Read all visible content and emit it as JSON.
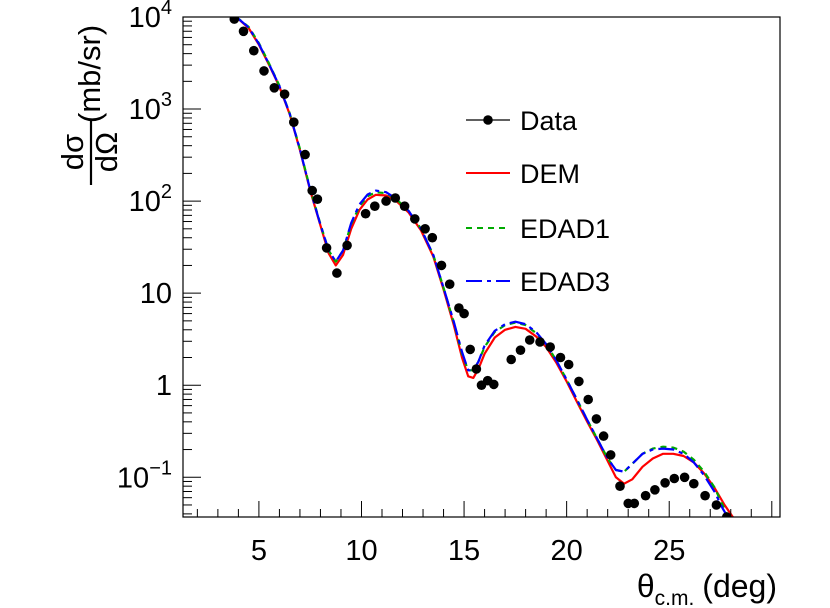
{
  "chart_data": {
    "type": "scatter",
    "title": "",
    "xlabel": {
      "main": "θ",
      "sub": "c.m.",
      "unit": "(deg)"
    },
    "ylabel": {
      "frac_num": "dσ",
      "frac_den": "dΩ",
      "unit": "(mb/sr)"
    },
    "xlim": [
      1.3,
      30.4
    ],
    "ylim": [
      0.037,
      10000
    ],
    "yscale": "log",
    "grid": false,
    "legend_position": "upper-right",
    "x_ticks": [
      {
        "value": 5,
        "label": "5"
      },
      {
        "value": 10,
        "label": "10"
      },
      {
        "value": 15,
        "label": "15"
      },
      {
        "value": 20,
        "label": "20"
      },
      {
        "value": 25,
        "label": "25"
      }
    ],
    "y_ticks": [
      {
        "value": 10000,
        "base": "10",
        "exp": "4",
        "label": ""
      },
      {
        "value": 1000,
        "base": "10",
        "exp": "3",
        "label": ""
      },
      {
        "value": 100,
        "base": "10",
        "exp": "2",
        "label": ""
      },
      {
        "value": 10,
        "base": "",
        "exp": "",
        "label": "10"
      },
      {
        "value": 1,
        "base": "",
        "exp": "",
        "label": "1"
      },
      {
        "value": 0.1,
        "base": "10",
        "exp": "−1",
        "label": ""
      }
    ],
    "series": [
      {
        "name": "Data",
        "kind": "points",
        "color": "#000000",
        "points": [
          [
            3.8,
            9500
          ],
          [
            4.25,
            7000
          ],
          [
            4.75,
            4300
          ],
          [
            5.25,
            2600
          ],
          [
            5.75,
            1700
          ],
          [
            6.25,
            1450
          ],
          [
            6.7,
            720
          ],
          [
            7.25,
            320
          ],
          [
            7.6,
            130
          ],
          [
            7.85,
            105
          ],
          [
            8.3,
            31
          ],
          [
            8.8,
            16.5
          ],
          [
            9.3,
            33
          ],
          [
            10.2,
            73
          ],
          [
            10.65,
            88
          ],
          [
            11.2,
            100
          ],
          [
            11.65,
            108
          ],
          [
            12.1,
            88
          ],
          [
            12.6,
            64
          ],
          [
            13.1,
            50
          ],
          [
            13.45,
            40
          ],
          [
            13.9,
            20
          ],
          [
            14.3,
            12.5
          ],
          [
            14.75,
            6.9
          ],
          [
            15.0,
            6.0
          ],
          [
            15.3,
            2.45
          ],
          [
            15.6,
            1.5
          ],
          [
            15.85,
            1.0
          ],
          [
            16.15,
            1.12
          ],
          [
            16.45,
            1.02
          ],
          [
            17.3,
            1.9
          ],
          [
            17.75,
            2.4
          ],
          [
            18.2,
            3.1
          ],
          [
            18.7,
            2.95
          ],
          [
            19.2,
            2.6
          ],
          [
            19.7,
            2.0
          ],
          [
            20.1,
            1.68
          ],
          [
            20.6,
            1.1
          ],
          [
            21.05,
            0.7
          ],
          [
            21.45,
            0.43
          ],
          [
            21.8,
            0.28
          ],
          [
            22.15,
            0.175
          ],
          [
            22.6,
            0.08
          ],
          [
            23.0,
            0.052
          ],
          [
            23.3,
            0.052
          ],
          [
            23.85,
            0.063
          ],
          [
            24.3,
            0.073
          ],
          [
            24.8,
            0.087
          ],
          [
            25.25,
            0.097
          ],
          [
            25.75,
            0.1
          ],
          [
            26.2,
            0.085
          ],
          [
            26.75,
            0.063
          ],
          [
            27.3,
            0.05
          ],
          [
            27.8,
            0.037
          ]
        ]
      },
      {
        "name": "DEM",
        "kind": "line",
        "color": "#ff0000",
        "dash": "",
        "points": [
          [
            3.9,
            10000
          ],
          [
            4.5,
            7600
          ],
          [
            5.0,
            5000
          ],
          [
            5.5,
            3000
          ],
          [
            6.0,
            1750
          ],
          [
            6.5,
            880
          ],
          [
            7.0,
            360
          ],
          [
            7.5,
            130
          ],
          [
            8.0,
            54
          ],
          [
            8.4,
            27
          ],
          [
            8.75,
            20
          ],
          [
            9.1,
            26
          ],
          [
            9.5,
            50
          ],
          [
            9.9,
            80
          ],
          [
            10.3,
            104
          ],
          [
            10.7,
            117
          ],
          [
            11.2,
            115
          ],
          [
            11.7,
            100
          ],
          [
            12.3,
            75
          ],
          [
            12.9,
            48
          ],
          [
            13.5,
            25
          ],
          [
            14.0,
            11
          ],
          [
            14.5,
            4.5
          ],
          [
            14.9,
            2.0
          ],
          [
            15.2,
            1.25
          ],
          [
            15.45,
            1.2
          ],
          [
            15.7,
            1.5
          ],
          [
            16.0,
            2.2
          ],
          [
            16.5,
            3.3
          ],
          [
            17.0,
            4.0
          ],
          [
            17.5,
            4.3
          ],
          [
            18.0,
            4.1
          ],
          [
            18.5,
            3.4
          ],
          [
            19.0,
            2.6
          ],
          [
            19.5,
            1.75
          ],
          [
            20.0,
            1.1
          ],
          [
            20.5,
            0.66
          ],
          [
            21.0,
            0.4
          ],
          [
            21.5,
            0.25
          ],
          [
            22.0,
            0.15
          ],
          [
            22.4,
            0.1
          ],
          [
            22.8,
            0.085
          ],
          [
            23.2,
            0.095
          ],
          [
            23.7,
            0.13
          ],
          [
            24.2,
            0.16
          ],
          [
            24.7,
            0.18
          ],
          [
            25.2,
            0.18
          ],
          [
            25.7,
            0.17
          ],
          [
            26.2,
            0.145
          ],
          [
            26.7,
            0.11
          ],
          [
            27.2,
            0.077
          ],
          [
            27.7,
            0.05
          ],
          [
            28.1,
            0.037
          ]
        ]
      },
      {
        "name": "EDAD1",
        "kind": "line",
        "color": "#00aa00",
        "dash": "6,5",
        "points": [
          [
            3.9,
            10000
          ],
          [
            4.5,
            7800
          ],
          [
            5.0,
            5200
          ],
          [
            5.5,
            3100
          ],
          [
            6.0,
            1800
          ],
          [
            6.5,
            900
          ],
          [
            7.0,
            370
          ],
          [
            7.5,
            135
          ],
          [
            8.0,
            56
          ],
          [
            8.4,
            29
          ],
          [
            8.75,
            22
          ],
          [
            9.1,
            29
          ],
          [
            9.5,
            56
          ],
          [
            9.9,
            88
          ],
          [
            10.3,
            113
          ],
          [
            10.7,
            125
          ],
          [
            11.2,
            122
          ],
          [
            11.7,
            105
          ],
          [
            12.3,
            78
          ],
          [
            12.9,
            50
          ],
          [
            13.5,
            26
          ],
          [
            14.0,
            11.5
          ],
          [
            14.5,
            4.8
          ],
          [
            14.9,
            2.2
          ],
          [
            15.2,
            1.45
          ],
          [
            15.45,
            1.45
          ],
          [
            15.7,
            1.8
          ],
          [
            16.0,
            2.6
          ],
          [
            16.5,
            3.8
          ],
          [
            17.0,
            4.5
          ],
          [
            17.5,
            4.8
          ],
          [
            18.0,
            4.5
          ],
          [
            18.5,
            3.7
          ],
          [
            19.0,
            2.8
          ],
          [
            19.5,
            1.85
          ],
          [
            20.0,
            1.15
          ],
          [
            20.5,
            0.7
          ],
          [
            21.0,
            0.42
          ],
          [
            21.5,
            0.26
          ],
          [
            22.0,
            0.16
          ],
          [
            22.4,
            0.12
          ],
          [
            22.8,
            0.115
          ],
          [
            23.2,
            0.14
          ],
          [
            23.7,
            0.18
          ],
          [
            24.2,
            0.205
          ],
          [
            24.7,
            0.215
          ],
          [
            25.2,
            0.21
          ],
          [
            25.7,
            0.19
          ],
          [
            26.2,
            0.155
          ],
          [
            26.7,
            0.115
          ],
          [
            27.2,
            0.078
          ],
          [
            27.6,
            0.05
          ],
          [
            27.9,
            0.037
          ]
        ]
      },
      {
        "name": "EDAD3",
        "kind": "line",
        "color": "#0000ff",
        "dash": "16,5,4,5",
        "points": [
          [
            3.9,
            10000
          ],
          [
            4.5,
            7700
          ],
          [
            5.0,
            5100
          ],
          [
            5.5,
            3050
          ],
          [
            6.0,
            1780
          ],
          [
            6.5,
            890
          ],
          [
            7.0,
            365
          ],
          [
            7.5,
            133
          ],
          [
            8.0,
            55
          ],
          [
            8.4,
            29
          ],
          [
            8.75,
            22
          ],
          [
            9.1,
            29
          ],
          [
            9.5,
            58
          ],
          [
            9.9,
            92
          ],
          [
            10.3,
            118
          ],
          [
            10.7,
            130
          ],
          [
            11.2,
            125
          ],
          [
            11.7,
            106
          ],
          [
            12.3,
            78
          ],
          [
            12.9,
            50
          ],
          [
            13.5,
            26
          ],
          [
            14.0,
            11.5
          ],
          [
            14.5,
            4.9
          ],
          [
            14.9,
            2.3
          ],
          [
            15.2,
            1.45
          ],
          [
            15.45,
            1.45
          ],
          [
            15.7,
            1.8
          ],
          [
            16.0,
            2.7
          ],
          [
            16.5,
            3.9
          ],
          [
            17.0,
            4.6
          ],
          [
            17.5,
            4.9
          ],
          [
            18.0,
            4.6
          ],
          [
            18.5,
            3.8
          ],
          [
            19.0,
            2.8
          ],
          [
            19.5,
            1.85
          ],
          [
            20.0,
            1.15
          ],
          [
            20.5,
            0.7
          ],
          [
            21.0,
            0.42
          ],
          [
            21.5,
            0.26
          ],
          [
            22.0,
            0.16
          ],
          [
            22.4,
            0.12
          ],
          [
            22.8,
            0.115
          ],
          [
            23.2,
            0.14
          ],
          [
            23.7,
            0.18
          ],
          [
            24.2,
            0.2
          ],
          [
            24.7,
            0.205
          ],
          [
            25.2,
            0.2
          ],
          [
            25.7,
            0.18
          ],
          [
            26.2,
            0.145
          ],
          [
            26.7,
            0.105
          ],
          [
            27.2,
            0.07
          ],
          [
            27.6,
            0.046
          ],
          [
            27.85,
            0.037
          ]
        ]
      }
    ]
  }
}
